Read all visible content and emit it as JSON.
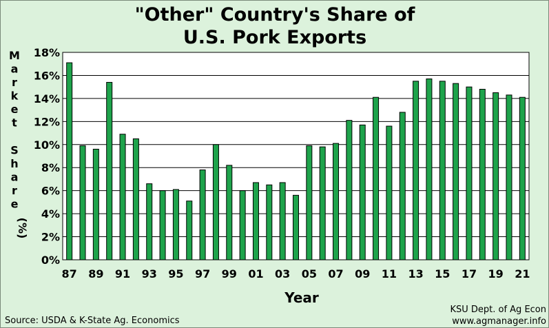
{
  "chart_data": {
    "type": "bar",
    "title_lines": [
      "\"Other\" Country's Share of",
      "U.S. Pork Exports"
    ],
    "xlabel": "Year",
    "ylabel": "Market Share (%)",
    "ylim": [
      0,
      18
    ],
    "yticks": [
      0,
      2,
      4,
      6,
      8,
      10,
      12,
      14,
      16,
      18
    ],
    "ytick_labels": [
      "0%",
      "2%",
      "4%",
      "6%",
      "8%",
      "10%",
      "12%",
      "14%",
      "16%",
      "18%"
    ],
    "grid": true,
    "categories": [
      "87",
      "88",
      "89",
      "90",
      "91",
      "92",
      "93",
      "94",
      "95",
      "96",
      "97",
      "98",
      "99",
      "00",
      "01",
      "02",
      "03",
      "04",
      "05",
      "06",
      "07",
      "08",
      "09",
      "10",
      "11",
      "12",
      "13",
      "14",
      "15",
      "16",
      "17",
      "18",
      "19",
      "20",
      "21"
    ],
    "xtick_labels": [
      "87",
      "89",
      "91",
      "93",
      "95",
      "97",
      "99",
      "01",
      "03",
      "05",
      "07",
      "09",
      "11",
      "13",
      "15",
      "17",
      "19",
      "21"
    ],
    "values": [
      17.1,
      9.9,
      9.6,
      15.4,
      10.9,
      10.5,
      6.6,
      6.0,
      6.1,
      5.1,
      7.8,
      10.0,
      8.2,
      6.0,
      6.7,
      6.5,
      6.7,
      5.6,
      9.9,
      9.8,
      10.1,
      12.1,
      11.7,
      14.1,
      11.6,
      12.8,
      15.5,
      15.7,
      15.5,
      15.3,
      15.0,
      14.8,
      14.5,
      14.3,
      14.1
    ],
    "bar_color": "#1ea34b",
    "plot_background": "#ffffff",
    "page_background": "#dcf2dc"
  },
  "footer": {
    "source": "Source:  USDA & K-State Ag. Economics",
    "credit_line1": "KSU Dept. of Ag Econ",
    "credit_line2": "www.agmanager.info"
  }
}
